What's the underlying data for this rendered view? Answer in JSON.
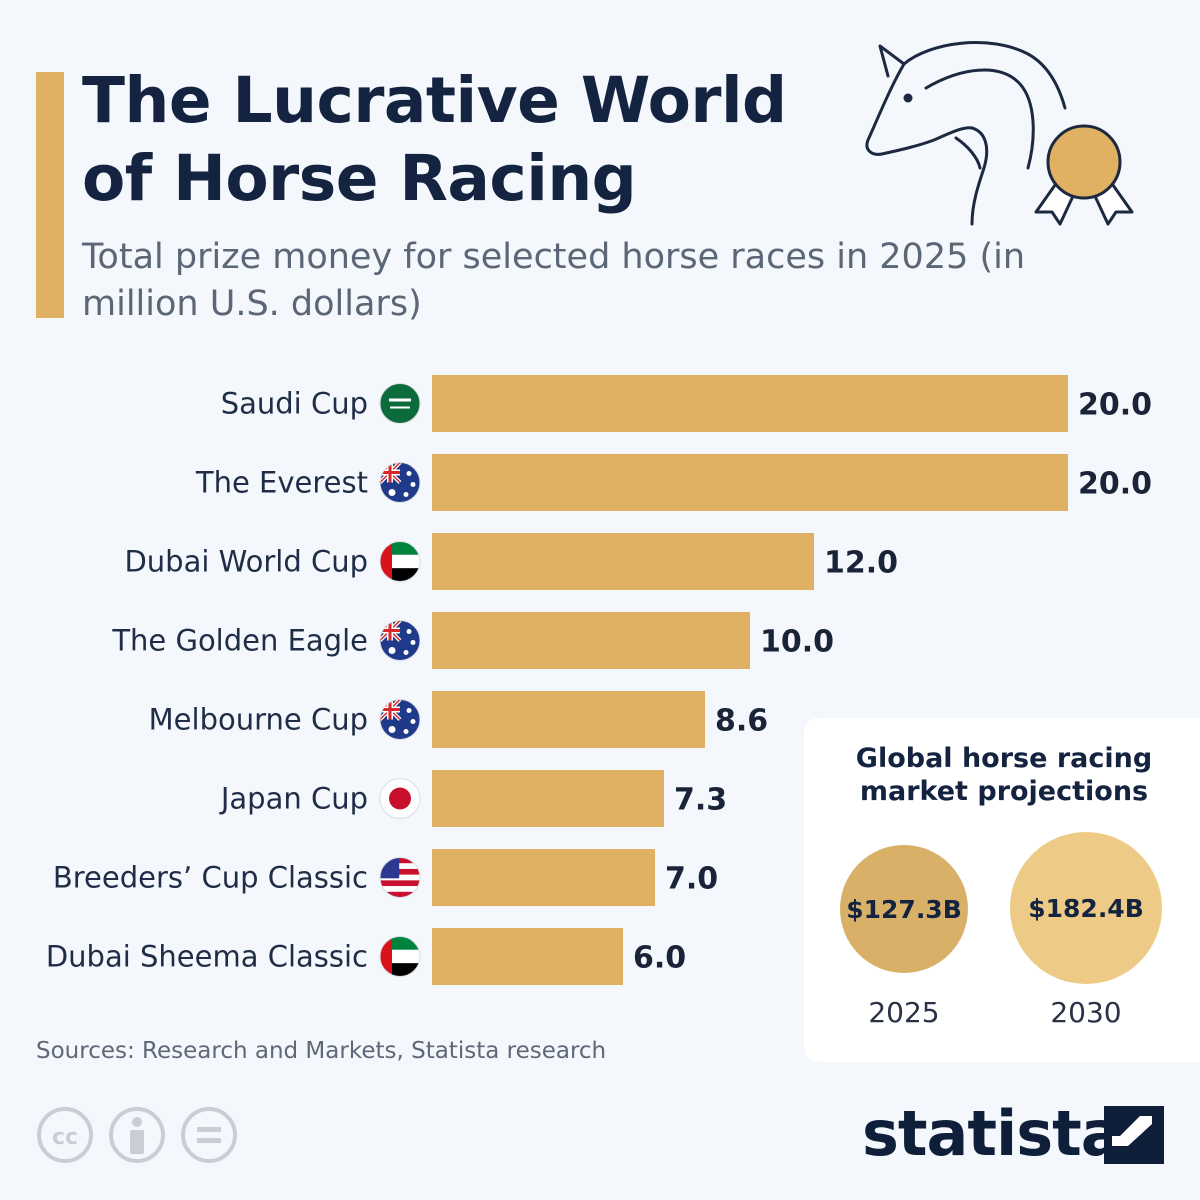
{
  "header": {
    "title": "The Lucrative World of Horse Racing",
    "subtitle": "Total prize money for selected horse races in 2025 (in million U.S. dollars)"
  },
  "colors": {
    "accent": "#e0b063",
    "bar": "#e0b063",
    "text_dark": "#14233f"
  },
  "chart_data": {
    "type": "bar",
    "orientation": "horizontal",
    "title": "The Lucrative World of Horse Racing",
    "subtitle": "Total prize money for selected horse races in 2025 (in million U.S. dollars)",
    "categories": [
      "Saudi Cup",
      "The Everest",
      "Dubai World Cup",
      "The Golden Eagle",
      "Melbourne Cup",
      "Japan Cup",
      "Breeders’ Cup Classic",
      "Dubai Sheema Classic"
    ],
    "values": [
      20.0,
      20.0,
      12.0,
      10.0,
      8.6,
      7.3,
      7.0,
      6.0
    ],
    "value_labels": [
      "20.0",
      "20.0",
      "12.0",
      "10.0",
      "8.6",
      "7.3",
      "7.0",
      "6.0"
    ],
    "flags": [
      "saudi-arabia-flag-icon",
      "australia-flag-icon",
      "uae-flag-icon",
      "australia-flag-icon",
      "australia-flag-icon",
      "japan-flag-icon",
      "usa-flag-icon",
      "uae-flag-icon"
    ],
    "xlim": [
      0,
      20
    ],
    "grid": false,
    "legend": "none"
  },
  "panel": {
    "title": "Global horse racing market projections",
    "items": [
      {
        "value": "$127.3B",
        "year": "2025"
      },
      {
        "value": "$182.4B",
        "year": "2030"
      }
    ]
  },
  "footer": {
    "source": "Sources: Research and Markets, Statista research",
    "brand": "statista",
    "license_icons": [
      "cc-icon",
      "attribution-icon",
      "no-derivatives-icon"
    ]
  },
  "decoration": {
    "icons": [
      "horse-head-icon",
      "medal-icon"
    ]
  }
}
